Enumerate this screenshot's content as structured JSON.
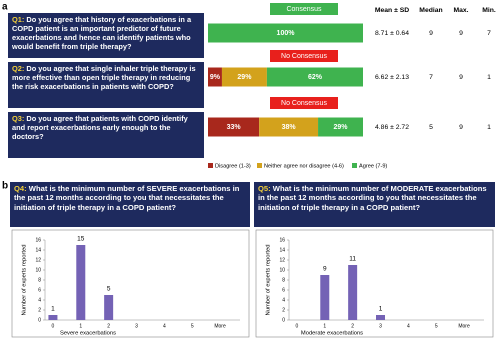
{
  "chart_data": [
    {
      "type": "stacked_bar",
      "panel": "a",
      "questions": [
        {
          "label": "Q1:",
          "text": "Do you agree that history of exacerbations in a COPD patient is an important predictor of future exacerbations and hence can identify patients who would benefit from triple therapy?"
        },
        {
          "label": "Q2:",
          "text": "Do you agree that single inhaler triple therapy is more effective than open triple therapy in reducing the risk exacerbations in patients with COPD?"
        },
        {
          "label": "Q3:",
          "text": "Do you agree that patients with COPD identify and report exacerbations early enough to the doctors?"
        }
      ],
      "status": [
        {
          "label": "Consensus",
          "color": "#3fb34f"
        },
        {
          "label": "No Consensus",
          "color": "#e8201c"
        },
        {
          "label": "No Consensus",
          "color": "#e8201c"
        }
      ],
      "xlim": [
        0,
        100
      ],
      "series": [
        {
          "name": "Disagree (1-3)",
          "color": "#a8281c",
          "values": [
            0,
            9,
            33
          ],
          "value_labels": [
            null,
            "9%",
            "33%"
          ]
        },
        {
          "name": "Neither agree nor disagree (4-6)",
          "color": "#d3a21c",
          "values": [
            0,
            29,
            38
          ],
          "value_labels": [
            null,
            "29%",
            "38%"
          ]
        },
        {
          "name": "Agree (7-9)",
          "color": "#3fb34f",
          "values": [
            100,
            62,
            29
          ],
          "value_labels": [
            "100%",
            "62%",
            "29%"
          ]
        }
      ],
      "table": {
        "header": [
          "Mean ± SD",
          "Median",
          "Max.",
          "Min."
        ],
        "rows": [
          [
            "8.71 ± 0.64",
            9,
            9,
            7
          ],
          [
            "6.62 ± 2.13",
            7,
            9,
            1
          ],
          [
            "4.86 ± 2.72",
            5,
            9,
            1
          ]
        ]
      }
    },
    {
      "type": "bar",
      "panel": "b",
      "question": {
        "label": "Q4:",
        "text": "What is the minimum number of SEVERE exacerbations in the past 12 months according to you that necessitates the initiation of triple therapy in a COPD patient?"
      },
      "categories": [
        "0",
        "1",
        "2",
        "3",
        "4",
        "5",
        "More"
      ],
      "values": [
        1,
        15,
        5,
        0,
        0,
        0,
        0
      ],
      "color": "#7462b5",
      "ylim": [
        0,
        16
      ],
      "yticks": [
        0,
        2,
        4,
        6,
        8,
        10,
        12,
        14,
        16
      ],
      "ylabel": "Number of experts reported",
      "xlabel": "Severe exacerbations"
    },
    {
      "type": "bar",
      "question": {
        "label": "Q5:",
        "text": "What is the minimum number of MODERATE exacerbations in the past 12 months according to you that necessitates the initiation of triple therapy in a COPD patient?"
      },
      "categories": [
        "0",
        "1",
        "2",
        "3",
        "4",
        "5",
        "More"
      ],
      "values": [
        0,
        9,
        11,
        1,
        0,
        0,
        0
      ],
      "color": "#7462b5",
      "ylim": [
        0,
        16
      ],
      "yticks": [
        0,
        2,
        4,
        6,
        8,
        10,
        12,
        14,
        16
      ],
      "ylabel": "Number of experts reported",
      "xlabel": "Moderate exacerbations"
    }
  ]
}
